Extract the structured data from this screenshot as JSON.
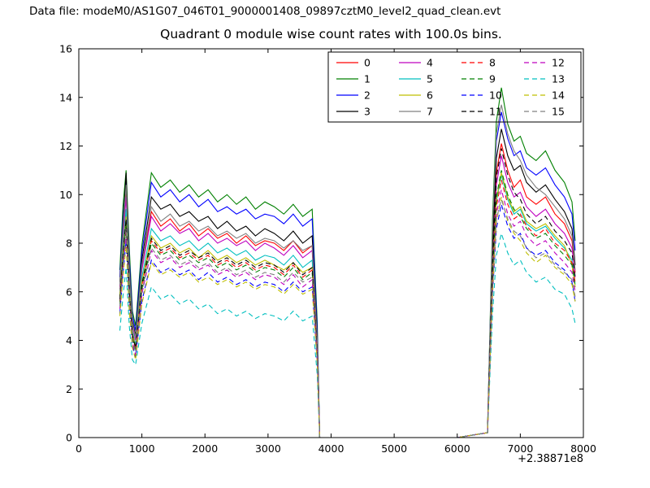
{
  "header": {
    "data_file_label": "Data file: modeM0/AS1G07_046T01_9000001408_09897cztM0_level2_quad_clean.evt"
  },
  "chart_data": {
    "type": "line",
    "title": "Quadrant 0 module wise count rates with 100.0s bins.",
    "xlabel": "",
    "ylabel": "",
    "x_offset_label": "+2.38871e8",
    "xlim": [
      0,
      8000
    ],
    "ylim": [
      0,
      16
    ],
    "xticks": [
      0,
      1000,
      2000,
      3000,
      4000,
      5000,
      6000,
      7000,
      8000
    ],
    "yticks": [
      0,
      2,
      4,
      6,
      8,
      10,
      12,
      14,
      16
    ],
    "grid": false,
    "legend_position": "upper center inside, 4 columns",
    "x": [
      650,
      700,
      750,
      800,
      850,
      900,
      1000,
      1150,
      1300,
      1450,
      1600,
      1750,
      1900,
      2050,
      2200,
      2350,
      2500,
      2650,
      2800,
      2950,
      3100,
      3250,
      3400,
      3550,
      3700,
      3780,
      3820,
      4000,
      6000,
      6480,
      6560,
      6620,
      6700,
      6800,
      6900,
      7000,
      7100,
      7250,
      7400,
      7550,
      7700,
      7820,
      7870
    ],
    "series": [
      {
        "name": "0",
        "color": "#ff0000",
        "dashed": false,
        "values": [
          6.2,
          8.3,
          10.2,
          6.8,
          4.7,
          4.1,
          7.0,
          9.3,
          8.7,
          9.0,
          8.5,
          8.8,
          8.3,
          8.6,
          8.2,
          8.4,
          8.0,
          8.3,
          7.9,
          8.1,
          8.0,
          7.7,
          8.1,
          7.6,
          7.9,
          4.0,
          0,
          0,
          0,
          0.2,
          7.4,
          10.9,
          12.1,
          11.0,
          10.3,
          10.6,
          9.9,
          9.6,
          9.9,
          9.2,
          8.8,
          8.1,
          6.8
        ]
      },
      {
        "name": "1",
        "color": "#008000",
        "dashed": false,
        "values": [
          6.9,
          9.5,
          11.0,
          7.8,
          5.2,
          4.6,
          7.9,
          10.9,
          10.3,
          10.6,
          10.1,
          10.4,
          9.9,
          10.2,
          9.7,
          10.0,
          9.6,
          9.9,
          9.4,
          9.7,
          9.5,
          9.2,
          9.6,
          9.1,
          9.4,
          4.8,
          0,
          0,
          0,
          0.2,
          9.0,
          13.0,
          14.4,
          12.9,
          12.2,
          12.4,
          11.7,
          11.4,
          11.8,
          11.0,
          10.5,
          9.7,
          8.1
        ]
      },
      {
        "name": "2",
        "color": "#0000ff",
        "dashed": false,
        "values": [
          6.6,
          9.0,
          10.6,
          7.4,
          5.0,
          4.4,
          7.6,
          10.5,
          9.9,
          10.2,
          9.7,
          10.0,
          9.5,
          9.8,
          9.3,
          9.5,
          9.2,
          9.4,
          9.0,
          9.2,
          9.1,
          8.8,
          9.2,
          8.7,
          9.0,
          4.5,
          0,
          0,
          0,
          0.2,
          8.4,
          12.2,
          13.4,
          12.3,
          11.6,
          11.8,
          11.1,
          10.8,
          11.1,
          10.4,
          9.9,
          9.2,
          7.7
        ]
      },
      {
        "name": "3",
        "color": "#000000",
        "dashed": false,
        "values": [
          6.4,
          8.7,
          10.9,
          7.1,
          4.8,
          4.2,
          7.3,
          9.9,
          9.4,
          9.6,
          9.1,
          9.3,
          8.9,
          9.1,
          8.6,
          8.9,
          8.5,
          8.7,
          8.3,
          8.6,
          8.4,
          8.1,
          8.5,
          8.0,
          8.3,
          4.2,
          0,
          0,
          0,
          0.2,
          7.9,
          11.5,
          12.7,
          11.6,
          11.0,
          11.2,
          10.5,
          10.1,
          10.4,
          9.8,
          9.3,
          8.6,
          7.1
        ]
      },
      {
        "name": "4",
        "color": "#bf00bf",
        "dashed": false,
        "values": [
          6.1,
          8.1,
          9.9,
          6.6,
          4.6,
          4.0,
          6.9,
          9.1,
          8.5,
          8.8,
          8.4,
          8.6,
          8.1,
          8.4,
          8.0,
          8.2,
          7.9,
          8.1,
          7.7,
          8.0,
          7.8,
          7.5,
          7.9,
          7.4,
          7.7,
          3.9,
          0,
          0,
          0,
          0.2,
          7.0,
          10.4,
          11.6,
          10.5,
          9.9,
          10.1,
          9.5,
          9.1,
          9.4,
          8.8,
          8.4,
          7.8,
          6.6
        ]
      },
      {
        "name": "5",
        "color": "#00bfbf",
        "dashed": false,
        "values": [
          5.9,
          7.8,
          9.4,
          6.3,
          4.4,
          3.8,
          6.6,
          8.6,
          8.1,
          8.3,
          7.9,
          8.1,
          7.7,
          8.0,
          7.6,
          7.8,
          7.5,
          7.7,
          7.3,
          7.5,
          7.4,
          7.1,
          7.5,
          7.0,
          7.3,
          3.7,
          0,
          0,
          0,
          0.2,
          6.6,
          9.7,
          10.8,
          9.8,
          9.2,
          9.4,
          8.8,
          8.5,
          8.7,
          8.2,
          7.8,
          7.3,
          6.3
        ]
      },
      {
        "name": "6",
        "color": "#bfbf00",
        "dashed": false,
        "values": [
          5.8,
          7.6,
          9.1,
          6.1,
          4.3,
          3.7,
          6.4,
          8.3,
          7.8,
          8.0,
          7.6,
          7.8,
          7.4,
          7.7,
          7.3,
          7.5,
          7.2,
          7.4,
          7.1,
          7.3,
          7.1,
          6.9,
          7.2,
          6.8,
          7.0,
          3.6,
          0,
          0,
          0,
          0.2,
          6.7,
          9.8,
          10.9,
          9.9,
          9.3,
          9.5,
          8.9,
          8.6,
          8.8,
          8.3,
          7.9,
          7.1,
          6.2
        ]
      },
      {
        "name": "7",
        "color": "#808080",
        "dashed": false,
        "values": [
          6.3,
          8.5,
          10.4,
          6.9,
          4.7,
          4.1,
          7.1,
          9.5,
          8.9,
          9.2,
          8.7,
          8.9,
          8.5,
          8.7,
          8.3,
          8.5,
          8.2,
          8.4,
          8.0,
          8.2,
          8.1,
          7.8,
          8.1,
          7.7,
          7.9,
          4.0,
          0,
          0,
          0,
          0.2,
          8.6,
          12.5,
          13.7,
          12.5,
          11.8,
          11.4,
          10.8,
          10.3,
          10.0,
          9.5,
          9.0,
          8.3,
          6.9
        ]
      },
      {
        "name": "8",
        "color": "#ff0000",
        "dashed": true,
        "values": [
          5.6,
          7.4,
          8.9,
          5.9,
          4.2,
          3.6,
          6.2,
          8.1,
          7.6,
          7.8,
          7.4,
          7.6,
          7.3,
          7.5,
          7.1,
          7.3,
          7.0,
          7.2,
          6.9,
          7.1,
          7.0,
          6.7,
          7.1,
          6.6,
          6.9,
          3.5,
          0,
          0,
          0,
          0.2,
          6.5,
          9.5,
          10.6,
          9.6,
          9.0,
          9.2,
          8.7,
          8.3,
          8.6,
          8.0,
          7.7,
          7.2,
          6.4
        ]
      },
      {
        "name": "9",
        "color": "#008000",
        "dashed": true,
        "values": [
          5.5,
          7.3,
          8.8,
          5.8,
          4.1,
          3.6,
          6.1,
          8.0,
          7.5,
          7.7,
          7.3,
          7.5,
          7.2,
          7.4,
          7.0,
          7.2,
          6.9,
          7.1,
          6.8,
          7.0,
          6.9,
          6.6,
          7.0,
          6.5,
          6.8,
          3.4,
          0,
          0,
          0,
          0.2,
          6.7,
          9.9,
          11.0,
          10.0,
          9.4,
          9.1,
          8.6,
          8.2,
          8.4,
          7.9,
          7.5,
          7.1,
          6.2
        ]
      },
      {
        "name": "10",
        "color": "#0000ff",
        "dashed": true,
        "values": [
          5.1,
          6.7,
          8.1,
          5.3,
          3.8,
          3.3,
          5.6,
          7.3,
          6.8,
          7.0,
          6.7,
          6.9,
          6.5,
          6.8,
          6.4,
          6.6,
          6.3,
          6.5,
          6.2,
          6.4,
          6.3,
          6.0,
          6.4,
          6.0,
          6.2,
          3.1,
          0,
          0,
          0,
          0.2,
          5.9,
          8.6,
          9.6,
          8.7,
          8.2,
          8.4,
          7.8,
          7.5,
          7.7,
          7.2,
          6.9,
          6.4,
          5.6
        ]
      },
      {
        "name": "11",
        "color": "#000000",
        "dashed": true,
        "values": [
          5.7,
          7.5,
          9.0,
          6.0,
          4.2,
          3.7,
          6.3,
          8.2,
          7.7,
          7.9,
          7.5,
          7.7,
          7.4,
          7.6,
          7.2,
          7.4,
          7.1,
          7.3,
          7.0,
          7.2,
          7.1,
          6.8,
          7.2,
          6.7,
          7.0,
          3.5,
          0,
          0,
          0,
          0.2,
          7.2,
          10.7,
          11.9,
          10.8,
          10.1,
          9.8,
          9.2,
          8.8,
          9.1,
          8.5,
          8.1,
          7.6,
          6.6
        ]
      },
      {
        "name": "12",
        "color": "#bf00bf",
        "dashed": true,
        "values": [
          5.3,
          7.0,
          8.4,
          5.6,
          3.9,
          3.4,
          5.9,
          7.7,
          7.2,
          7.4,
          7.0,
          7.2,
          6.9,
          7.1,
          6.7,
          6.9,
          6.6,
          6.8,
          6.5,
          6.7,
          6.6,
          6.3,
          6.7,
          6.2,
          6.5,
          3.3,
          0,
          0,
          0,
          0.2,
          6.2,
          9.2,
          10.2,
          9.2,
          8.7,
          8.9,
          8.3,
          7.9,
          8.1,
          7.6,
          7.2,
          6.8,
          6.0
        ]
      },
      {
        "name": "13",
        "color": "#00bfbf",
        "dashed": true,
        "values": [
          4.4,
          5.8,
          7.0,
          4.6,
          3.2,
          3.0,
          4.7,
          6.2,
          5.7,
          5.9,
          5.5,
          5.7,
          5.3,
          5.5,
          5.1,
          5.3,
          5.0,
          5.2,
          4.9,
          5.1,
          5.0,
          4.8,
          5.2,
          4.8,
          5.0,
          2.6,
          0,
          0,
          0,
          0.2,
          5.1,
          7.5,
          8.4,
          7.6,
          7.1,
          7.3,
          6.8,
          6.4,
          6.6,
          6.1,
          5.9,
          5.3,
          4.7
        ]
      },
      {
        "name": "14",
        "color": "#bfbf00",
        "dashed": true,
        "values": [
          5.0,
          6.6,
          7.9,
          5.2,
          3.7,
          3.2,
          5.5,
          7.2,
          6.7,
          6.9,
          6.6,
          6.8,
          6.4,
          6.6,
          6.3,
          6.5,
          6.2,
          6.4,
          6.1,
          6.3,
          6.2,
          5.9,
          6.3,
          5.9,
          6.1,
          3.1,
          0,
          0,
          0,
          0.2,
          6.0,
          8.9,
          9.9,
          8.9,
          8.4,
          8.1,
          7.6,
          7.2,
          7.5,
          7.0,
          6.7,
          6.3,
          5.6
        ]
      },
      {
        "name": "15",
        "color": "#808080",
        "dashed": true,
        "values": [
          5.4,
          7.1,
          8.6,
          5.7,
          4.0,
          3.5,
          6.0,
          7.8,
          7.3,
          7.5,
          7.1,
          7.3,
          7.0,
          7.2,
          6.8,
          7.0,
          6.7,
          6.9,
          6.6,
          6.8,
          6.7,
          6.4,
          6.8,
          6.4,
          6.6,
          3.3,
          0,
          0,
          0,
          0.2,
          6.1,
          9.0,
          9.8,
          9.0,
          8.5,
          8.3,
          7.8,
          7.4,
          7.6,
          7.1,
          6.8,
          6.5,
          5.8
        ]
      }
    ]
  }
}
